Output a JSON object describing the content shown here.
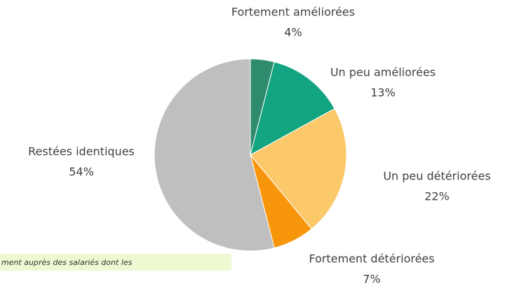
{
  "chart_data": {
    "type": "pie",
    "categories": [
      "Fortement améliorées",
      "Un peu améliorées",
      "Un peu détériorées",
      "Fortement détériorées",
      "Restées identiques"
    ],
    "values": [
      4,
      13,
      22,
      7,
      54
    ],
    "value_labels": [
      "4%",
      "13%",
      "22%",
      "7%",
      "54%"
    ],
    "colors": [
      "#2e8b6e",
      "#13a581",
      "#fbc96a",
      "#f7960a",
      "#bfbfbf"
    ]
  },
  "note": "ment auprès des salariés dont les"
}
